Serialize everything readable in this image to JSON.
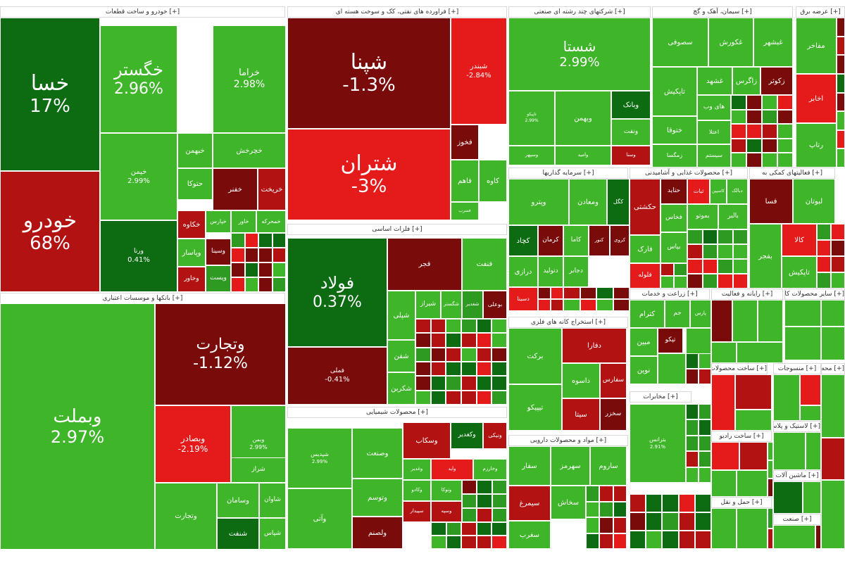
{
  "colors": {
    "up_bright": "#3fb52a",
    "up_mid": "#2e9a22",
    "up_dark": "#0d6b12",
    "down_bright": "#e51a1a",
    "down_mid": "#b31212",
    "down_dark": "#7a0b0b"
  },
  "chart_data": {
    "type": "treemap",
    "sectors": [
      {
        "name": "[+] خودرو و ساخت قطعات"
      },
      {
        "name": "[+] بانکها و موسسات اعتباری"
      },
      {
        "name": "[+] فراورده های نفتی، کک و سوخت هسته ای"
      },
      {
        "name": "[+] فلزات اساسی"
      },
      {
        "name": "[+] محصولات شیمیایی"
      },
      {
        "name": "[+] شرکتهای چند رشته ای صنعتی"
      },
      {
        "name": "[+] سرمایه گذاریها"
      },
      {
        "name": "[+] استخراج کانه های فلزی"
      },
      {
        "name": "[+] مواد و محصولات دارویی"
      },
      {
        "name": "[+] سیمان، آهک و گچ"
      },
      {
        "name": "[+] محصولات غذایی و آشامیدنی"
      },
      {
        "name": "[+] فعالیتهای کمکی به"
      },
      {
        "name": "[+] زراعت و خدمات"
      },
      {
        "name": "[+] رایانه و فعالیت"
      },
      {
        "name": "[+] مخابرات"
      },
      {
        "name": "[+] سایر محصولات کانی"
      },
      {
        "name": "[+] عرضه برق"
      },
      {
        "name": "[+] ساخت محصولات فلزی"
      },
      {
        "name": "[+] منسوجات"
      },
      {
        "name": "[+] محصولات کاغذی"
      },
      {
        "name": "[+] ساخت رادیو"
      },
      {
        "name": "[+] لاستیک و پلاستیک"
      },
      {
        "name": "[+] حمل و نقل"
      },
      {
        "name": "[+] ماشین آلات"
      },
      {
        "name": "[+] صنعت"
      }
    ],
    "tiles": [
      {
        "symbol": "خسا",
        "change": "17%"
      },
      {
        "symbol": "خودرو",
        "change": "68%"
      },
      {
        "symbol": "خگستر",
        "change": "2.96%"
      },
      {
        "symbol": "خراما",
        "change": "2.98%"
      },
      {
        "symbol": "خیمن",
        "change": "2.99%"
      },
      {
        "symbol": "ورنا",
        "change": "0.41%"
      },
      {
        "symbol": "وبملت",
        "change": "2.97%"
      },
      {
        "symbol": "وتجارت",
        "change": "-1.12%"
      },
      {
        "symbol": "وبصادر",
        "change": "-2.19%"
      },
      {
        "symbol": "وبمن",
        "change": "2.99%"
      },
      {
        "symbol": "شپنا",
        "change": "-1.3%"
      },
      {
        "symbol": "شبندر",
        "change": "-2.84%"
      },
      {
        "symbol": "شتران",
        "change": "-3%"
      },
      {
        "symbol": "فولاد",
        "change": "0.37%"
      },
      {
        "symbol": "فملی",
        "change": "-0.41%"
      },
      {
        "symbol": "شستا",
        "change": "2.99%"
      },
      {
        "symbol": "تاپیکو",
        "change": "2.99%"
      },
      {
        "symbol": "شپدیس",
        "change": "2.99%"
      },
      {
        "symbol": "بترانس",
        "change": "2.91%"
      }
    ],
    "labels": [
      "خبهمن",
      "خچرخش",
      "حتوکا",
      "خفنر",
      "خریخت",
      "خکاوه",
      "خپارس",
      "خاور",
      "خمحرکه",
      "وپاسار",
      "وخاور",
      "وسینا",
      "وپست",
      "وتجارت",
      "وسامان",
      "شاوان",
      "شنفت",
      "شپاس",
      "شراز",
      "فخوز",
      "فاهم",
      "کاوه",
      "فسرب",
      "فجر",
      "فنفت",
      "شپلی",
      "شیراز",
      "شگستر",
      "شغدیر",
      "بوعلی",
      "شفن",
      "شکربن",
      "نوری",
      "وآتی",
      "وصنعت",
      "وتوسم",
      "ولصنم",
      "وسکاب",
      "وکغدیر",
      "ونیکی",
      "وغدیر",
      "واید",
      "وخارزم",
      "وکادو",
      "سپیدار",
      "وتوکا",
      "وسپه",
      "وبهمن",
      "وبانک",
      "ونفت",
      "وسنا",
      "وامید",
      "وسپهر",
      "وپترو",
      "ومعادن",
      "کگل",
      "کچاد",
      "کرمان",
      "کاما",
      "کنور",
      "کروی",
      "درازی",
      "دتولید",
      "دجابر",
      "دسینا",
      "برکت",
      "تیپیکو",
      "دفارا",
      "داسوه",
      "سفارس",
      "سیتا",
      "سخزر",
      "سفار",
      "سهرمز",
      "ساروم",
      "سیمرغ",
      "سغرب",
      "سخاش",
      "سصوفی",
      "غکورش",
      "غبشهر",
      "تاپکیش",
      "ختوقا",
      "غشهد",
      "زاگرس",
      "زکوثر",
      "زمگسا",
      "های وب",
      "اعتلا",
      "سیستم",
      "مفاخر",
      "اخابر",
      "رتاپ",
      "حکشتی",
      "حتاید",
      "ثبات",
      "کاسپین",
      "دبالک",
      "فارک",
      "فلوله",
      "فخاس",
      "بپاس",
      "بموتو",
      "بالبر",
      "فسا",
      "لبوتان",
      "کالا",
      "تاپکیش",
      "بفجر",
      "کترام",
      "جم",
      "پارس",
      "مبین",
      "تپکو",
      "نوین"
    ]
  }
}
